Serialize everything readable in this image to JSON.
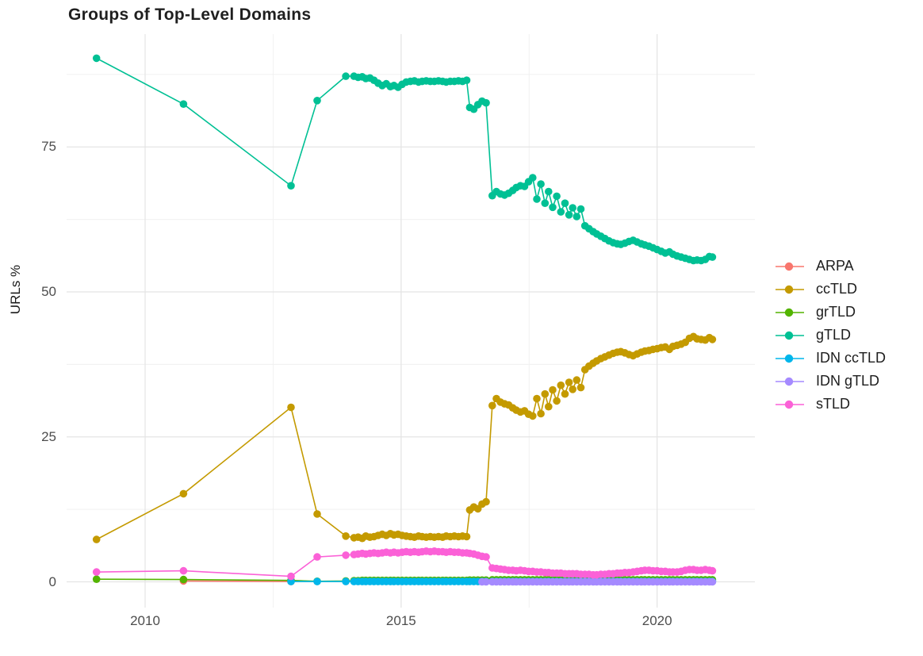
{
  "title": {
    "text": "Groups of Top-Level Domains"
  },
  "axes": {
    "y_title": "URLs %",
    "y_ticks": [
      {
        "label": "0",
        "value": 0
      },
      {
        "label": "25",
        "value": 25
      },
      {
        "label": "50",
        "value": 50
      },
      {
        "label": "75",
        "value": 75
      }
    ],
    "x_ticks": [
      {
        "label": "2010",
        "value": 2010
      },
      {
        "label": "2015",
        "value": 2015
      },
      {
        "label": "2020",
        "value": 2020
      }
    ]
  },
  "legend": {
    "items": [
      {
        "label": "ARPA",
        "color": "#F8766D"
      },
      {
        "label": "ccTLD",
        "color": "#C49A00"
      },
      {
        "label": "grTLD",
        "color": "#53B400"
      },
      {
        "label": "gTLD",
        "color": "#00C094"
      },
      {
        "label": "IDN ccTLD",
        "color": "#00B6EB"
      },
      {
        "label": "IDN gTLD",
        "color": "#A58AFF"
      },
      {
        "label": "sTLD",
        "color": "#FB61D7"
      }
    ]
  },
  "chart_data": {
    "type": "line",
    "title": "Groups of Top-Level Domains",
    "xlabel": "",
    "ylabel": "URLs %",
    "x_range_shown": [
      2008.5,
      2021.9
    ],
    "y_range_shown": [
      -4.5,
      94.5
    ],
    "grid": {
      "major_x": [
        2010,
        2015,
        2020
      ],
      "minor_x": [
        2012.5,
        2017.5
      ],
      "major_y": [
        0,
        25,
        50,
        75
      ],
      "minor_y": [
        12.5,
        37.5,
        62.5,
        87.5
      ]
    },
    "x": [
      2009.05,
      2010.75,
      2012.85,
      2013.36,
      2013.92,
      2014.08,
      2014.16,
      2014.24,
      2014.31,
      2014.39,
      2014.47,
      2014.55,
      2014.63,
      2014.71,
      2014.79,
      2014.86,
      2014.94,
      2015.02,
      2015.1,
      2015.18,
      2015.26,
      2015.34,
      2015.41,
      2015.49,
      2015.57,
      2015.65,
      2015.73,
      2015.81,
      2015.88,
      2015.96,
      2016.04,
      2016.12,
      2016.2,
      2016.28,
      2016.34,
      2016.42,
      2016.5,
      2016.58,
      2016.66,
      2016.78,
      2016.86,
      2016.94,
      2017.02,
      2017.1,
      2017.18,
      2017.25,
      2017.33,
      2017.41,
      2017.49,
      2017.57,
      2017.65,
      2017.73,
      2017.81,
      2017.88,
      2017.96,
      2018.04,
      2018.12,
      2018.2,
      2018.28,
      2018.35,
      2018.43,
      2018.51,
      2018.59,
      2018.67,
      2018.75,
      2018.82,
      2018.9,
      2018.98,
      2019.06,
      2019.14,
      2019.22,
      2019.29,
      2019.37,
      2019.45,
      2019.53,
      2019.61,
      2019.69,
      2019.76,
      2019.84,
      2019.92,
      2020.0,
      2020.08,
      2020.16,
      2020.24,
      2020.31,
      2020.39,
      2020.47,
      2020.55,
      2020.63,
      2020.71,
      2020.78,
      2020.86,
      2020.94,
      2021.02,
      2021.08
    ],
    "series": [
      {
        "name": "ARPA",
        "color": "#F8766D",
        "values": [
          null,
          0.15,
          0.05,
          null,
          null,
          null,
          null,
          null,
          null,
          null,
          null,
          null,
          null,
          null,
          null,
          null,
          null,
          null,
          null,
          null,
          null,
          null,
          null,
          null,
          null,
          null,
          null,
          null,
          null,
          null,
          null,
          null,
          null,
          null,
          null,
          null,
          null,
          null,
          null,
          null,
          null,
          null,
          null,
          null,
          null,
          null,
          null,
          null,
          null,
          null,
          null,
          null,
          null,
          null,
          null,
          null,
          null,
          null,
          null,
          null,
          null,
          null,
          null,
          null,
          null,
          null,
          null,
          null,
          null,
          null,
          null,
          null,
          null,
          null,
          null,
          null,
          null,
          null,
          null,
          null,
          null,
          null,
          null,
          null,
          null,
          null,
          null,
          null,
          null,
          null,
          null,
          null,
          null,
          null,
          null
        ]
      },
      {
        "name": "ccTLD",
        "color": "#C49A00",
        "values": [
          7.3,
          15.2,
          30.1,
          11.7,
          7.9,
          7.6,
          7.7,
          7.5,
          7.9,
          7.7,
          7.8,
          8.0,
          8.2,
          8.0,
          8.3,
          8.1,
          8.2,
          8.0,
          7.9,
          7.8,
          7.7,
          7.9,
          7.8,
          7.7,
          7.8,
          7.7,
          7.8,
          7.7,
          7.9,
          7.8,
          7.9,
          7.8,
          7.9,
          7.8,
          12.4,
          12.9,
          12.6,
          13.4,
          13.8,
          30.4,
          31.6,
          31.0,
          30.7,
          30.5,
          30.0,
          29.6,
          29.3,
          29.5,
          28.9,
          28.6,
          31.6,
          29.0,
          32.4,
          30.2,
          33.1,
          31.2,
          33.9,
          32.4,
          34.4,
          33.2,
          34.8,
          33.5,
          36.6,
          37.2,
          37.7,
          38.1,
          38.5,
          38.8,
          39.1,
          39.4,
          39.6,
          39.7,
          39.5,
          39.2,
          39.0,
          39.3,
          39.6,
          39.8,
          39.9,
          40.1,
          40.2,
          40.4,
          40.5,
          40.1,
          40.6,
          40.8,
          41.0,
          41.3,
          42.0,
          42.3,
          41.9,
          41.8,
          41.7,
          42.1,
          41.8
        ]
      },
      {
        "name": "grTLD",
        "color": "#53B400",
        "values": [
          0.45,
          0.4,
          0.25,
          0.1,
          0.15,
          0.2,
          0.2,
          0.25,
          0.25,
          0.25,
          0.25,
          0.25,
          0.25,
          0.25,
          0.25,
          0.25,
          0.25,
          0.25,
          0.25,
          0.25,
          0.25,
          0.25,
          0.25,
          0.25,
          0.25,
          0.25,
          0.25,
          0.25,
          0.25,
          0.25,
          0.25,
          0.25,
          0.25,
          0.25,
          0.3,
          0.3,
          0.3,
          0.3,
          0.3,
          0.35,
          0.35,
          0.35,
          0.35,
          0.35,
          0.35,
          0.35,
          0.35,
          0.35,
          0.35,
          0.35,
          0.35,
          0.35,
          0.35,
          0.35,
          0.35,
          0.35,
          0.35,
          0.35,
          0.35,
          0.35,
          0.35,
          0.35,
          0.35,
          0.35,
          0.35,
          0.35,
          0.35,
          0.35,
          0.35,
          0.35,
          0.35,
          0.35,
          0.35,
          0.35,
          0.35,
          0.35,
          0.35,
          0.35,
          0.35,
          0.35,
          0.35,
          0.35,
          0.35,
          0.35,
          0.35,
          0.35,
          0.35,
          0.35,
          0.35,
          0.35,
          0.35,
          0.35,
          0.35,
          0.35,
          0.35
        ]
      },
      {
        "name": "gTLD",
        "color": "#00C094",
        "values": [
          90.3,
          82.4,
          68.3,
          83.0,
          87.2,
          87.2,
          87.0,
          87.1,
          86.8,
          86.9,
          86.5,
          86.0,
          85.6,
          85.9,
          85.4,
          85.6,
          85.3,
          85.8,
          86.2,
          86.3,
          86.4,
          86.2,
          86.3,
          86.4,
          86.3,
          86.3,
          86.4,
          86.3,
          86.2,
          86.3,
          86.3,
          86.4,
          86.3,
          86.5,
          81.8,
          81.5,
          82.3,
          82.9,
          82.6,
          66.6,
          67.3,
          66.9,
          66.7,
          67.0,
          67.5,
          68.0,
          68.3,
          68.2,
          69.0,
          69.7,
          66.0,
          68.6,
          65.3,
          67.3,
          64.6,
          66.5,
          63.8,
          65.3,
          63.3,
          64.5,
          63.0,
          64.3,
          61.4,
          60.9,
          60.4,
          60.0,
          59.6,
          59.2,
          58.8,
          58.5,
          58.3,
          58.2,
          58.4,
          58.7,
          58.9,
          58.6,
          58.3,
          58.1,
          57.9,
          57.6,
          57.3,
          57.0,
          56.7,
          56.9,
          56.5,
          56.2,
          56.0,
          55.8,
          55.6,
          55.4,
          55.5,
          55.4,
          55.6,
          56.1,
          56.0
        ]
      },
      {
        "name": "IDN ccTLD",
        "color": "#00B6EB",
        "values": [
          null,
          null,
          0.05,
          0.05,
          0.05,
          0.05,
          0.05,
          0.05,
          0.05,
          0.05,
          0.05,
          0.05,
          0.05,
          0.05,
          0.05,
          0.05,
          0.05,
          0.05,
          0.05,
          0.05,
          0.05,
          0.05,
          0.05,
          0.05,
          0.05,
          0.05,
          0.05,
          0.05,
          0.05,
          0.05,
          0.05,
          0.05,
          0.05,
          0.05,
          0.05,
          0.05,
          0.05,
          0.05,
          0.05,
          0.05,
          0.05,
          0.05,
          0.05,
          0.05,
          0.05,
          0.05,
          0.05,
          0.05,
          0.05,
          0.05,
          0.05,
          0.05,
          0.05,
          0.05,
          0.05,
          0.05,
          0.05,
          0.05,
          0.05,
          0.05,
          0.05,
          0.05,
          0.05,
          0.05,
          0.05,
          0.05,
          0.05,
          0.05,
          0.05,
          0.05,
          0.05,
          0.05,
          0.05,
          0.05,
          0.05,
          0.05,
          0.05,
          0.05,
          0.05,
          0.05,
          0.05,
          0.05,
          0.05,
          0.05,
          0.05,
          0.05,
          0.05,
          0.05,
          0.05,
          0.05,
          0.05,
          0.05,
          0.05,
          0.05,
          0.05
        ]
      },
      {
        "name": "IDN gTLD",
        "color": "#A58AFF",
        "values": [
          null,
          null,
          null,
          null,
          null,
          null,
          null,
          null,
          null,
          null,
          null,
          null,
          null,
          null,
          null,
          null,
          null,
          null,
          null,
          null,
          null,
          null,
          null,
          null,
          null,
          null,
          null,
          null,
          null,
          null,
          null,
          null,
          null,
          null,
          null,
          null,
          null,
          0.0,
          0.0,
          0.0,
          0.0,
          0.0,
          0.0,
          0.0,
          0.0,
          0.0,
          0.0,
          0.0,
          0.0,
          0.0,
          0.0,
          0.0,
          0.0,
          0.0,
          0.0,
          0.0,
          0.0,
          0.0,
          0.0,
          0.0,
          0.0,
          0.0,
          0.0,
          0.0,
          0.0,
          0.0,
          0.0,
          0.0,
          0.0,
          0.0,
          0.0,
          0.0,
          0.0,
          0.0,
          0.0,
          0.0,
          0.0,
          0.0,
          0.0,
          0.0,
          0.0,
          0.0,
          0.0,
          0.0,
          0.0,
          0.0,
          0.0,
          0.0,
          0.0,
          0.0,
          0.0,
          0.0,
          0.0,
          0.0,
          0.0
        ]
      },
      {
        "name": "sTLD",
        "color": "#FB61D7",
        "values": [
          1.7,
          1.9,
          0.95,
          4.3,
          4.6,
          4.7,
          4.8,
          4.9,
          4.8,
          4.9,
          5.0,
          4.9,
          5.0,
          5.1,
          5.0,
          5.1,
          5.0,
          5.1,
          5.2,
          5.1,
          5.2,
          5.1,
          5.2,
          5.3,
          5.2,
          5.3,
          5.2,
          5.2,
          5.1,
          5.2,
          5.1,
          5.1,
          5.0,
          5.0,
          4.9,
          4.8,
          4.6,
          4.4,
          4.3,
          2.4,
          2.3,
          2.2,
          2.1,
          2.0,
          2.0,
          1.9,
          2.0,
          1.9,
          1.8,
          1.8,
          1.7,
          1.7,
          1.6,
          1.6,
          1.5,
          1.5,
          1.5,
          1.4,
          1.4,
          1.4,
          1.4,
          1.3,
          1.3,
          1.3,
          1.2,
          1.2,
          1.3,
          1.3,
          1.4,
          1.4,
          1.5,
          1.5,
          1.6,
          1.6,
          1.7,
          1.8,
          1.9,
          2.0,
          2.0,
          1.9,
          1.9,
          1.8,
          1.8,
          1.7,
          1.7,
          1.7,
          1.8,
          2.0,
          2.1,
          2.1,
          2.0,
          2.0,
          2.1,
          2.0,
          1.9
        ]
      }
    ]
  }
}
